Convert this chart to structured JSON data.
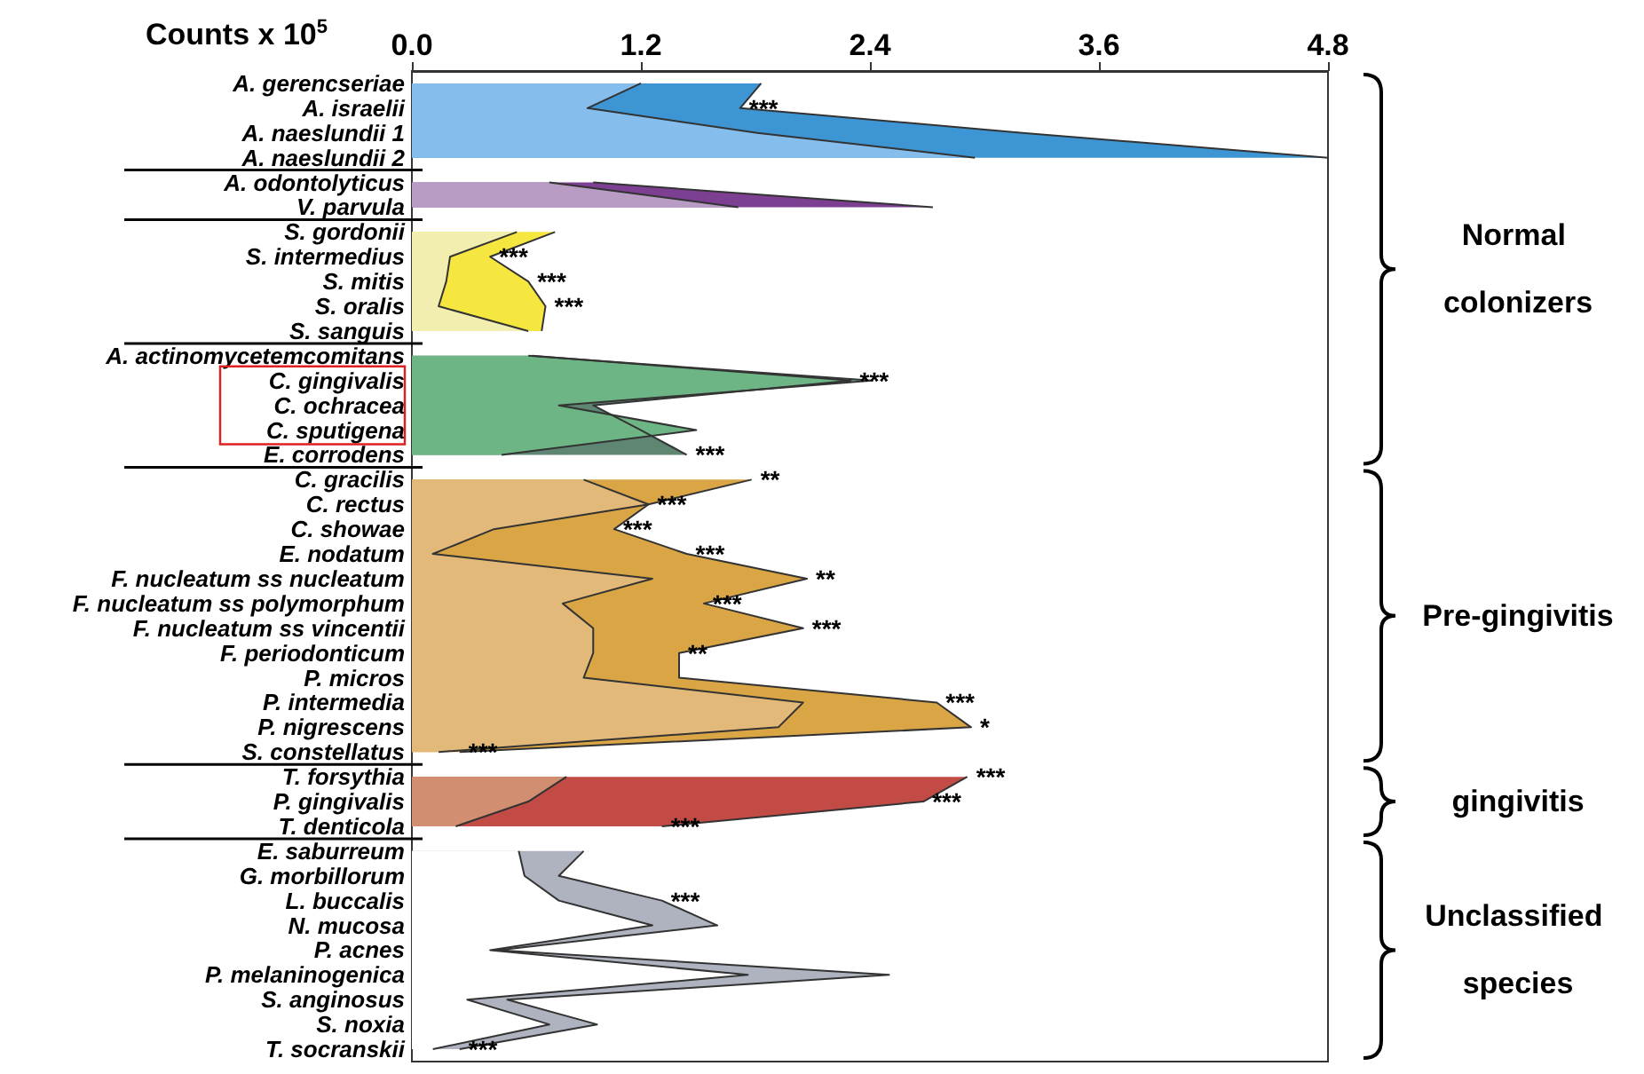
{
  "chart_data": {
    "type": "area",
    "orientation": "horizontal",
    "xlabel": "Counts x 10$^{5}$",
    "categories": [
      "A. gerencseriae",
      "A. israelii",
      "A. naeslundii 1",
      "A. naeslundii 2",
      "A. odontolyticus",
      "V. parvula",
      "S. gordonii",
      "S. intermedius",
      "S. mitis",
      "S. oralis",
      "S. sanguis",
      "A. actinomycetemcomitans",
      "C. gingivalis",
      "C. ochracea",
      "C. sputigena",
      "E. corrodens",
      "C. gracilis",
      "C. rectus",
      "C. showae",
      "E. nodatum",
      "F. nucleatum ss nucleatum",
      "F. nucleatum ss polymorphum",
      "F. nucleatum ss vincentii",
      "F. periodonticum",
      "P. micros",
      "P. intermedia",
      "P. nigrescens",
      "S. constellatus",
      "T. forsythia",
      "P. gingivalis",
      "T. denticola",
      "E. saburreum",
      "G. morbillorum",
      "L. buccalis",
      "N. mucosa",
      "P. acnes",
      "P. melaninogenica",
      "S. anginosus",
      "S. noxia",
      "T. socranskii"
    ],
    "xlim": [
      0,
      4.8
    ],
    "xticks": [
      {
        "value": 0,
        "label": "0.0"
      },
      1.2,
      2.4,
      3.6,
      4.8
    ],
    "grid": false,
    "series": [
      {
        "color": "#3d96d3",
        "values": [
          1.83,
          1.72,
          3.2,
          4.8,
          null,
          null,
          null,
          null,
          null,
          null,
          null,
          null,
          null,
          null,
          null,
          null,
          null,
          null,
          null,
          null,
          null,
          null,
          null,
          null,
          null,
          null,
          null,
          null,
          null,
          null,
          null,
          null,
          null,
          null,
          null,
          null,
          null,
          null,
          null,
          null
        ],
        "value_labels": [
          null,
          "***",
          null,
          null,
          null,
          null,
          null,
          null,
          null,
          null,
          null,
          null,
          null,
          null,
          null,
          null,
          null,
          null,
          null,
          null,
          null,
          null,
          null,
          null,
          null,
          null,
          null,
          null,
          null,
          null,
          null,
          null,
          null,
          null,
          null,
          null,
          null,
          null,
          null,
          null
        ]
      },
      {
        "color": "#85bdec",
        "values": [
          1.2,
          0.92,
          1.81,
          2.95,
          null,
          null,
          null,
          null,
          null,
          null,
          null,
          null,
          null,
          null,
          null,
          null,
          null,
          null,
          null,
          null,
          null,
          null,
          null,
          null,
          null,
          null,
          null,
          null,
          null,
          null,
          null,
          null,
          null,
          null,
          null,
          null,
          null,
          null,
          null,
          null
        ]
      },
      {
        "color": "#7d3f91",
        "values": [
          null,
          null,
          null,
          null,
          0.95,
          2.73,
          null,
          null,
          null,
          null,
          null,
          null,
          null,
          null,
          null,
          null,
          null,
          null,
          null,
          null,
          null,
          null,
          null,
          null,
          null,
          null,
          null,
          null,
          null,
          null,
          null,
          null,
          null,
          null,
          null,
          null,
          null,
          null,
          null,
          null
        ]
      },
      {
        "color": "#b99cc4",
        "values": [
          null,
          null,
          null,
          null,
          0.72,
          1.71,
          null,
          null,
          null,
          null,
          null,
          null,
          null,
          null,
          null,
          null,
          null,
          null,
          null,
          null,
          null,
          null,
          null,
          null,
          null,
          null,
          null,
          null,
          null,
          null,
          null,
          null,
          null,
          null,
          null,
          null,
          null,
          null,
          null,
          null
        ]
      },
      {
        "color": "#f5e640",
        "values": [
          null,
          null,
          null,
          null,
          null,
          null,
          0.75,
          0.41,
          0.61,
          0.7,
          0.68,
          null,
          null,
          null,
          null,
          null,
          null,
          null,
          null,
          null,
          null,
          null,
          null,
          null,
          null,
          null,
          null,
          null,
          null,
          null,
          null,
          null,
          null,
          null,
          null,
          null,
          null,
          null,
          null,
          null
        ],
        "value_labels": [
          null,
          null,
          null,
          null,
          null,
          null,
          null,
          "***",
          "***",
          "***",
          null,
          null,
          null,
          null,
          null,
          null,
          null,
          null,
          null,
          null,
          null,
          null,
          null,
          null,
          null,
          null,
          null,
          null,
          null,
          null,
          null,
          null,
          null,
          null,
          null,
          null,
          null,
          null,
          null,
          null
        ]
      },
      {
        "color": "#f2eeb0",
        "values": [
          null,
          null,
          null,
          null,
          null,
          null,
          0.55,
          0.2,
          0.18,
          0.14,
          0.61,
          null,
          null,
          null,
          null,
          null,
          null,
          null,
          null,
          null,
          null,
          null,
          null,
          null,
          null,
          null,
          null,
          null,
          null,
          null,
          null,
          null,
          null,
          null,
          null,
          null,
          null,
          null,
          null,
          null
        ]
      },
      {
        "color": "#5e8672",
        "values": [
          null,
          null,
          null,
          null,
          null,
          null,
          null,
          null,
          null,
          null,
          null,
          0.63,
          2.3,
          0.95,
          1.2,
          1.44,
          null,
          null,
          null,
          null,
          null,
          null,
          null,
          null,
          null,
          null,
          null,
          null,
          null,
          null,
          null,
          null,
          null,
          null,
          null,
          null,
          null,
          null,
          null,
          null
        ],
        "value_labels": [
          null,
          null,
          null,
          null,
          null,
          null,
          null,
          null,
          null,
          null,
          null,
          null,
          "***",
          null,
          null,
          "***",
          null,
          null,
          null,
          null,
          null,
          null,
          null,
          null,
          null,
          null,
          null,
          null,
          null,
          null,
          null,
          null,
          null,
          null,
          null,
          null,
          null,
          null,
          null,
          null
        ]
      },
      {
        "color": "#6db585",
        "values": [
          null,
          null,
          null,
          null,
          null,
          null,
          null,
          null,
          null,
          null,
          null,
          0.61,
          2.41,
          0.77,
          1.49,
          0.47,
          null,
          null,
          null,
          null,
          null,
          null,
          null,
          null,
          null,
          null,
          null,
          null,
          null,
          null,
          null,
          null,
          null,
          null,
          null,
          null,
          null,
          null,
          null,
          null
        ]
      },
      {
        "color": "#d9a545",
        "values": [
          null,
          null,
          null,
          null,
          null,
          null,
          null,
          null,
          null,
          null,
          null,
          null,
          null,
          null,
          null,
          null,
          1.78,
          1.24,
          1.06,
          1.44,
          2.07,
          1.53,
          2.05,
          1.4,
          1.4,
          2.75,
          2.93,
          0.25,
          null,
          null,
          null,
          null,
          null,
          null,
          null,
          null,
          null,
          null,
          null,
          null
        ],
        "value_labels": [
          null,
          null,
          null,
          null,
          null,
          null,
          null,
          null,
          null,
          null,
          null,
          null,
          null,
          null,
          null,
          null,
          "**",
          "***",
          "***",
          "***",
          "**",
          "***",
          "***",
          "**",
          null,
          "***",
          "*",
          "***",
          null,
          null,
          null,
          null,
          null,
          null,
          null,
          null,
          null,
          null,
          null,
          null
        ]
      },
      {
        "color": "#e3b97a",
        "values": [
          null,
          null,
          null,
          null,
          null,
          null,
          null,
          null,
          null,
          null,
          null,
          null,
          null,
          null,
          null,
          null,
          0.9,
          1.24,
          0.43,
          0.11,
          1.26,
          0.79,
          0.95,
          0.95,
          0.9,
          2.05,
          1.92,
          0.14,
          null,
          null,
          null,
          null,
          null,
          null,
          null,
          null,
          null,
          null,
          null,
          null
        ]
      },
      {
        "color": "#c24c45",
        "values": [
          null,
          null,
          null,
          null,
          null,
          null,
          null,
          null,
          null,
          null,
          null,
          null,
          null,
          null,
          null,
          null,
          null,
          null,
          null,
          null,
          null,
          null,
          null,
          null,
          null,
          null,
          null,
          null,
          2.91,
          2.68,
          1.31,
          null,
          null,
          null,
          null,
          null,
          null,
          null,
          null,
          null
        ],
        "value_labels": [
          null,
          null,
          null,
          null,
          null,
          null,
          null,
          null,
          null,
          null,
          null,
          null,
          null,
          null,
          null,
          null,
          null,
          null,
          null,
          null,
          null,
          null,
          null,
          null,
          null,
          null,
          null,
          null,
          "***",
          "***",
          "***",
          null,
          null,
          null,
          null,
          null,
          null,
          null,
          null,
          null
        ]
      },
      {
        "color": "#d28e71",
        "values": [
          null,
          null,
          null,
          null,
          null,
          null,
          null,
          null,
          null,
          null,
          null,
          null,
          null,
          null,
          null,
          null,
          null,
          null,
          null,
          null,
          null,
          null,
          null,
          null,
          null,
          null,
          null,
          null,
          0.81,
          0.61,
          0.23,
          null,
          null,
          null,
          null,
          null,
          null,
          null,
          null,
          null
        ]
      },
      {
        "color": "#aeb3bf",
        "values": [
          null,
          null,
          null,
          null,
          null,
          null,
          null,
          null,
          null,
          null,
          null,
          null,
          null,
          null,
          null,
          null,
          null,
          null,
          null,
          null,
          null,
          null,
          null,
          null,
          null,
          null,
          null,
          null,
          null,
          null,
          null,
          0.9,
          0.77,
          1.31,
          1.6,
          0.45,
          2.5,
          0.5,
          0.97,
          0.25
        ],
        "value_labels": [
          null,
          null,
          null,
          null,
          null,
          null,
          null,
          null,
          null,
          null,
          null,
          null,
          null,
          null,
          null,
          null,
          null,
          null,
          null,
          null,
          null,
          null,
          null,
          null,
          null,
          null,
          null,
          null,
          null,
          null,
          null,
          null,
          null,
          "***",
          null,
          null,
          null,
          null,
          null,
          "***"
        ]
      },
      {
        "color": "#ffffff",
        "values": [
          null,
          null,
          null,
          null,
          null,
          null,
          null,
          null,
          null,
          null,
          null,
          null,
          null,
          null,
          null,
          null,
          null,
          null,
          null,
          null,
          null,
          null,
          null,
          null,
          null,
          null,
          null,
          null,
          null,
          null,
          null,
          0.56,
          0.59,
          0.77,
          1.26,
          0.41,
          1.76,
          0.29,
          0.72,
          0.11
        ]
      }
    ],
    "annotations": [
      "Normal colonizers",
      "Pre-gingivitis",
      "gingivitis",
      "Unclassified species"
    ]
  }
}
